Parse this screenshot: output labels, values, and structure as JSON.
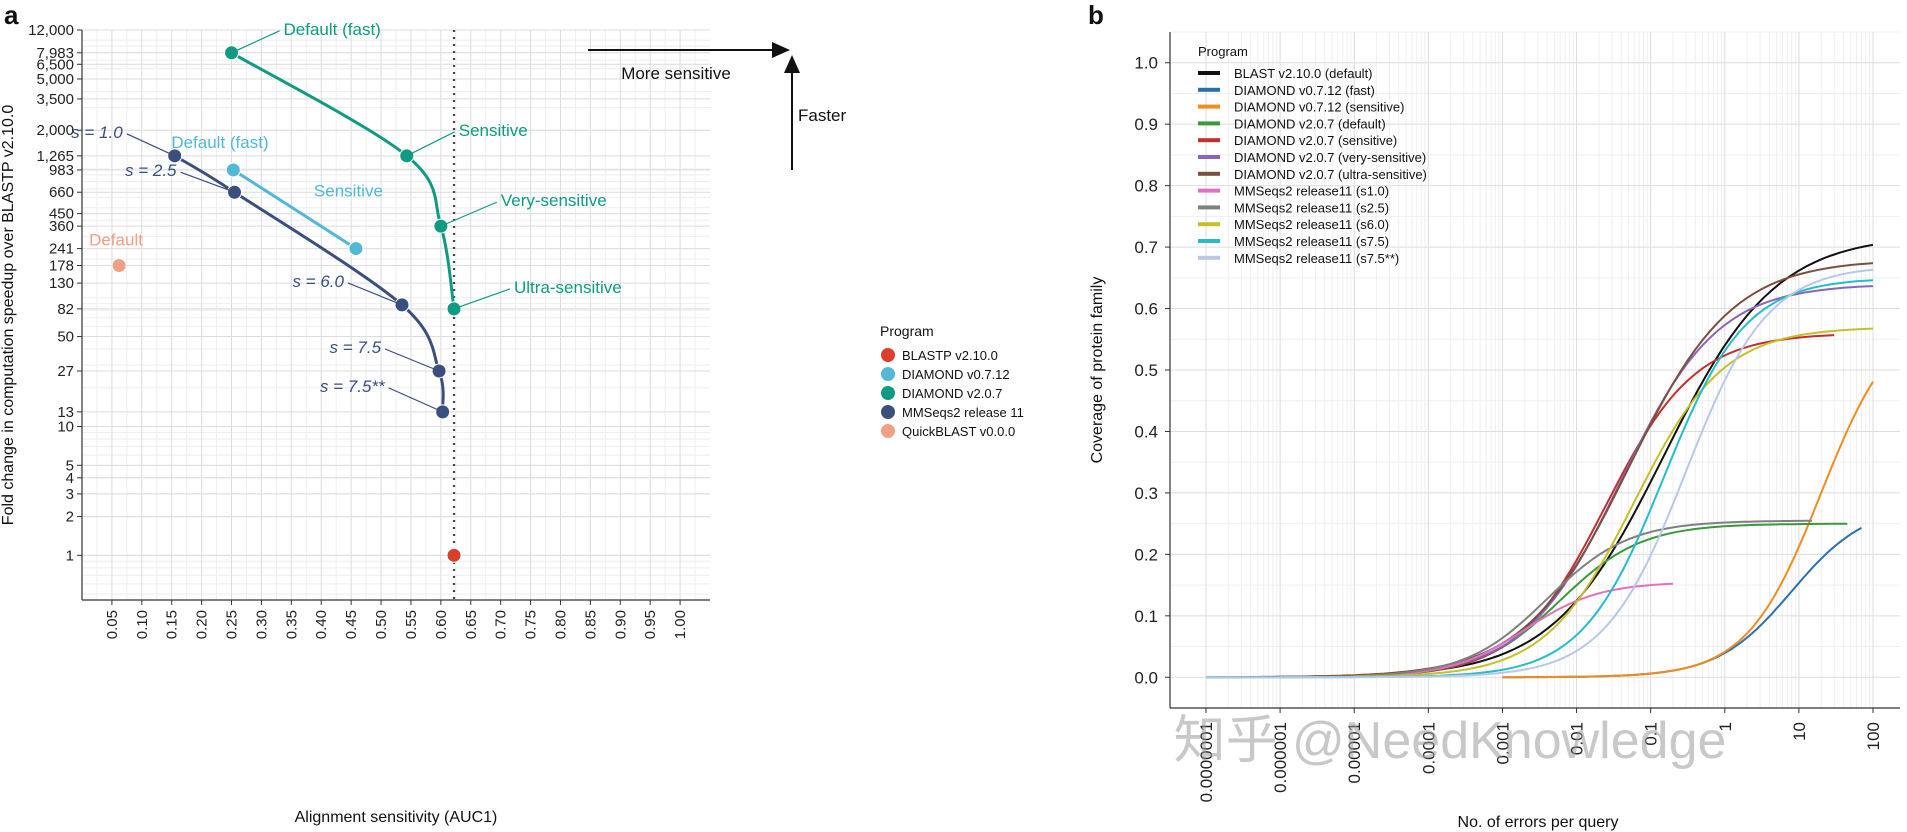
{
  "watermark": "知乎 @NeedKnowledge",
  "chart_data": [
    {
      "panel": "a",
      "type": "scatter",
      "title": "",
      "xlabel": "Alignment sensitivity (AUC1)",
      "ylabel": "Fold change in computation speedup over BLASTP v2.10.0",
      "xlim": [
        0.0,
        1.05
      ],
      "ylim": [
        0.45,
        12000
      ],
      "yscale": "log",
      "xticks": [
        "0.05",
        "0.10",
        "0.15",
        "0.20",
        "0.25",
        "0.30",
        "0.35",
        "0.40",
        "0.45",
        "0.50",
        "0.55",
        "0.60",
        "0.65",
        "0.70",
        "0.75",
        "0.80",
        "0.85",
        "0.90",
        "0.95",
        "1.00"
      ],
      "yticks": [
        {
          "v": 1,
          "l": "1"
        },
        {
          "v": 2,
          "l": "2"
        },
        {
          "v": 3,
          "l": "3"
        },
        {
          "v": 4,
          "l": "4"
        },
        {
          "v": 5,
          "l": "5"
        },
        {
          "v": 10,
          "l": "10"
        },
        {
          "v": 13,
          "l": "13"
        },
        {
          "v": 27,
          "l": "27"
        },
        {
          "v": 50,
          "l": "50"
        },
        {
          "v": 82,
          "l": "82"
        },
        {
          "v": 130,
          "l": "130"
        },
        {
          "v": 178,
          "l": "178"
        },
        {
          "v": 241,
          "l": "241"
        },
        {
          "v": 360,
          "l": "360"
        },
        {
          "v": 450,
          "l": "450"
        },
        {
          "v": 660,
          "l": "660"
        },
        {
          "v": 983,
          "l": "983"
        },
        {
          "v": 1265,
          "l": "1,265"
        },
        {
          "v": 2000,
          "l": "2,000"
        },
        {
          "v": 3500,
          "l": "3,500"
        },
        {
          "v": 5000,
          "l": "5,000"
        },
        {
          "v": 6500,
          "l": "6,500"
        },
        {
          "v": 7983,
          "l": "7,983"
        },
        {
          "v": 12000,
          "l": "12,000"
        }
      ],
      "reference_line_x": 0.622,
      "arrows": {
        "right_label": "More sensitive",
        "up_label": "Faster"
      },
      "legend_title": "Program",
      "legend_position": "right",
      "series": [
        {
          "name": "BLASTP v2.10.0",
          "color": "#d93f2b",
          "points": [
            {
              "x": 0.622,
              "y": 1,
              "label": ""
            }
          ]
        },
        {
          "name": "DIAMOND v0.7.12",
          "color": "#52b8d6",
          "points": [
            {
              "x": 0.253,
              "y": 983,
              "label": "Default (fast)"
            },
            {
              "x": 0.458,
              "y": 241,
              "label": "Sensitive"
            }
          ]
        },
        {
          "name": "DIAMOND v2.0.7",
          "color": "#0e9b82",
          "points": [
            {
              "x": 0.25,
              "y": 7983,
              "label": "Default (fast)"
            },
            {
              "x": 0.543,
              "y": 1265,
              "label": "Sensitive"
            },
            {
              "x": 0.6,
              "y": 360,
              "label": "Very-sensitive"
            },
            {
              "x": 0.622,
              "y": 82,
              "label": "Ultra-sensitive"
            }
          ]
        },
        {
          "name": "MMSeqs2 release 11",
          "color": "#3a4f7e",
          "points": [
            {
              "x": 0.155,
              "y": 1265,
              "label": "s = 1.0"
            },
            {
              "x": 0.255,
              "y": 660,
              "label": "s = 2.5"
            },
            {
              "x": 0.535,
              "y": 88,
              "label": "s = 6.0"
            },
            {
              "x": 0.597,
              "y": 27,
              "label": "s = 7.5"
            },
            {
              "x": 0.603,
              "y": 13,
              "label": "s = 7.5**"
            }
          ]
        },
        {
          "name": "QuickBLAST v0.0.0",
          "color": "#f0a085",
          "points": [
            {
              "x": 0.062,
              "y": 178,
              "label": "Default"
            }
          ]
        }
      ]
    },
    {
      "panel": "b",
      "type": "line",
      "title": "",
      "xlabel": "No. of errors per query",
      "ylabel": "Coverage of protein family",
      "xscale": "log",
      "xlim": [
        1e-07,
        100
      ],
      "ylim": [
        -0.05,
        1.05
      ],
      "xticks": [
        "0.0000001",
        "0.000001",
        "0.00001",
        "0.0001",
        "0.001",
        "0.01",
        "0.1",
        "1",
        "10",
        "100"
      ],
      "yticks": [
        "0.0",
        "0.1",
        "0.2",
        "0.3",
        "0.4",
        "0.5",
        "0.6",
        "0.7",
        "0.8",
        "0.9",
        "1.0"
      ],
      "legend_title": "Program",
      "legend_position": "top-left",
      "series": [
        {
          "name": "BLAST v2.10.0 (default)",
          "color": "#111111",
          "xstart": 1e-07,
          "xend": 100,
          "mid": 0.15,
          "width": 0.75,
          "top": 0.72
        },
        {
          "name": "DIAMOND v0.7.12 (fast)",
          "color": "#2b6fb0",
          "xstart": 0.001,
          "xend": 70,
          "mid": 8,
          "width": 0.5,
          "top": 0.28
        },
        {
          "name": "DIAMOND v0.7.12 (sensitive)",
          "color": "#f08c1e",
          "xstart": 0.001,
          "xend": 100,
          "mid": 20,
          "width": 0.5,
          "top": 0.6
        },
        {
          "name": "DIAMOND v2.0.7 (default)",
          "color": "#3a9a3a",
          "xstart": 1e-05,
          "xend": 45,
          "mid": 0.006,
          "width": 0.55,
          "top": 0.25
        },
        {
          "name": "DIAMOND v2.0.7 (sensitive)",
          "color": "#c0302e",
          "xstart": 1e-06,
          "xend": 30,
          "mid": 0.025,
          "width": 0.6,
          "top": 0.56
        },
        {
          "name": "DIAMOND v2.0.7 (very-sensitive)",
          "color": "#8a65b8",
          "xstart": 1e-06,
          "xend": 100,
          "mid": 0.04,
          "width": 0.65,
          "top": 0.64
        },
        {
          "name": "DIAMOND v2.0.7 (ultra-sensitive)",
          "color": "#7a5040",
          "xstart": 1e-06,
          "xend": 100,
          "mid": 0.05,
          "width": 0.7,
          "top": 0.68
        },
        {
          "name": "MMSeqs2 release11 (s1.0)",
          "color": "#e070c0",
          "xstart": 1e-05,
          "xend": 0.2,
          "mid": 0.002,
          "width": 0.5,
          "top": 0.155
        },
        {
          "name": "MMSeqs2 release11 (s2.5)",
          "color": "#808080",
          "xstart": 1e-05,
          "xend": 15,
          "mid": 0.004,
          "width": 0.55,
          "top": 0.255
        },
        {
          "name": "MMSeqs2 release11 (s6.0)",
          "color": "#c5c02a",
          "xstart": 1e-06,
          "xend": 100,
          "mid": 0.06,
          "width": 0.6,
          "top": 0.57
        },
        {
          "name": "MMSeqs2 release11 (s7.5)",
          "color": "#25bccb",
          "xstart": 1e-07,
          "xend": 100,
          "mid": 0.15,
          "width": 0.55,
          "top": 0.65
        },
        {
          "name": "MMSeqs2 release11 (s7.5**)",
          "color": "#b8c8e8",
          "xstart": 1e-07,
          "xend": 100,
          "mid": 0.3,
          "width": 0.55,
          "top": 0.67
        }
      ]
    }
  ]
}
